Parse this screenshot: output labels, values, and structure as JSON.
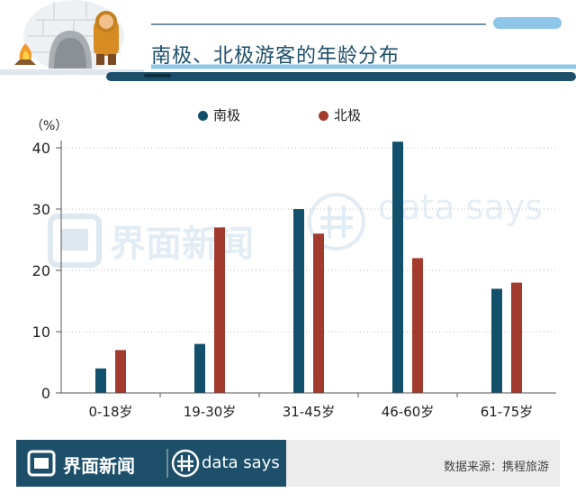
{
  "header": {
    "title": "南极、北极游客的年龄分布"
  },
  "chart_data": {
    "type": "bar",
    "title": "南极、北极游客的年龄分布",
    "unit_label": "（%）",
    "categories": [
      "0-18岁",
      "19-30岁",
      "31-45岁",
      "46-60岁",
      "61-75岁"
    ],
    "series": [
      {
        "name": "南极",
        "color": "#13506b",
        "values": [
          4,
          8,
          30,
          41,
          17
        ]
      },
      {
        "name": "北极",
        "color": "#a33a2e",
        "values": [
          7,
          27,
          26,
          22,
          18
        ]
      }
    ],
    "y_ticks": [
      0,
      10,
      20,
      30,
      40
    ],
    "ylim": [
      0,
      40
    ],
    "legend_position": "top-center",
    "grid": "horizontal-dotted"
  },
  "watermark": {
    "cn": "界面新闻",
    "en": "data says"
  },
  "footer": {
    "brand_cn": "界面新闻",
    "brand_en": "data says",
    "source": "数据来源：携程旅游"
  },
  "colors": {
    "brand_dark": "#1d4f6b",
    "accent_light": "#8dc6e8"
  }
}
